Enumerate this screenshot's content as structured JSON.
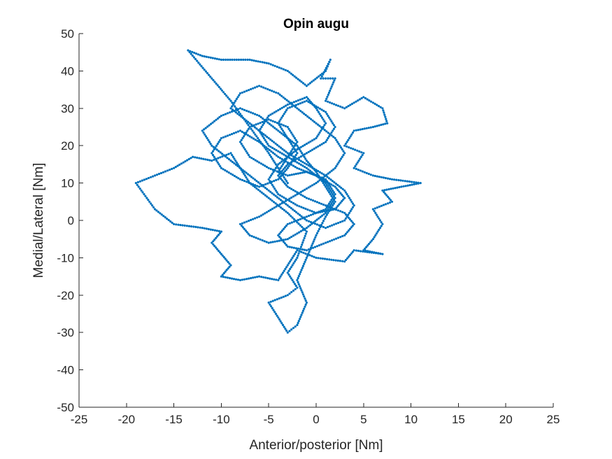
{
  "chart_data": {
    "type": "scatter",
    "title": "Opin augu",
    "xlabel": "Anterior/posterior [Nm]",
    "ylabel": "Medial/Lateral [Nm]",
    "xlim": [
      -25,
      25
    ],
    "ylim": [
      -50,
      50
    ],
    "xticks": [
      -25,
      -20,
      -15,
      -10,
      -5,
      0,
      5,
      10,
      15,
      20,
      25
    ],
    "yticks": [
      -50,
      -40,
      -30,
      -20,
      -10,
      0,
      10,
      20,
      30,
      40,
      50
    ],
    "xtick_labels": [
      "-25",
      "-20",
      "-15",
      "-10",
      "-5",
      "0",
      "5",
      "10",
      "15",
      "20",
      "25"
    ],
    "ytick_labels": [
      "-50",
      "-40",
      "-30",
      "-20",
      "-10",
      "0",
      "10",
      "20",
      "30",
      "40",
      "50"
    ],
    "grid": false,
    "marker_color": "#0072BD",
    "series": [
      {
        "path_points": [
          [
            -3,
            10
          ],
          [
            -5,
            18
          ],
          [
            -7,
            25
          ],
          [
            -9,
            32
          ],
          [
            -11,
            38
          ],
          [
            -13.5,
            45.5
          ],
          [
            -12,
            44
          ],
          [
            -10,
            43
          ],
          [
            -7,
            43
          ],
          [
            -5,
            42
          ],
          [
            -3,
            40
          ],
          [
            -1,
            36
          ],
          [
            1,
            40
          ],
          [
            1.5,
            43
          ],
          [
            0.5,
            38
          ],
          [
            2,
            38
          ],
          [
            1,
            32
          ],
          [
            3,
            30
          ],
          [
            5,
            33
          ],
          [
            7,
            30
          ],
          [
            7.5,
            26
          ],
          [
            6,
            25
          ],
          [
            4,
            24
          ],
          [
            3,
            20
          ],
          [
            5,
            18
          ],
          [
            4,
            14
          ],
          [
            6,
            12
          ],
          [
            8,
            11
          ],
          [
            11,
            10
          ],
          [
            9,
            9
          ],
          [
            7,
            8
          ],
          [
            8,
            5
          ],
          [
            6,
            3
          ],
          [
            7,
            -1
          ],
          [
            6,
            -5
          ],
          [
            5,
            -8
          ],
          [
            7,
            -9
          ],
          [
            4,
            -8
          ],
          [
            3,
            -11
          ],
          [
            0,
            -10
          ],
          [
            -2,
            -8
          ],
          [
            -3,
            -12
          ],
          [
            -4,
            -16
          ],
          [
            -6,
            -15
          ],
          [
            -8,
            -16
          ],
          [
            -10,
            -15
          ],
          [
            -9,
            -12
          ],
          [
            -10,
            -9
          ],
          [
            -11,
            -6
          ],
          [
            -10,
            -3
          ],
          [
            -12,
            -2
          ],
          [
            -15,
            -1
          ],
          [
            -17,
            3
          ],
          [
            -19,
            10
          ],
          [
            -17,
            12
          ],
          [
            -15,
            14
          ],
          [
            -13,
            17
          ],
          [
            -11,
            16
          ],
          [
            -9,
            18
          ],
          [
            -8,
            14
          ],
          [
            -7,
            10
          ],
          [
            -5,
            6
          ],
          [
            -3,
            2
          ],
          [
            -1,
            -3
          ],
          [
            -2,
            -10
          ],
          [
            -3,
            -14
          ],
          [
            -2,
            -18
          ],
          [
            -3,
            -20
          ],
          [
            -5,
            -22
          ],
          [
            -4,
            -26
          ],
          [
            -3,
            -30
          ],
          [
            -2,
            -28
          ],
          [
            -1,
            -22
          ],
          [
            -2,
            -16
          ],
          [
            -1,
            -10
          ],
          [
            0,
            -4
          ],
          [
            1,
            1
          ],
          [
            2,
            5
          ],
          [
            1,
            9
          ],
          [
            0,
            13
          ],
          [
            -1,
            16
          ],
          [
            -2,
            20
          ],
          [
            -4,
            24
          ],
          [
            -6,
            28
          ],
          [
            -8,
            30
          ],
          [
            -10,
            28
          ],
          [
            -12,
            24
          ],
          [
            -11,
            20
          ],
          [
            -9,
            16
          ],
          [
            -7,
            12
          ],
          [
            -5,
            8
          ],
          [
            -3,
            4
          ],
          [
            -1,
            0
          ],
          [
            1,
            -2
          ],
          [
            3,
            0
          ],
          [
            4,
            4
          ],
          [
            3,
            8
          ],
          [
            1,
            12
          ],
          [
            -1,
            15
          ],
          [
            -3,
            18
          ],
          [
            -5,
            22
          ],
          [
            -7,
            26
          ],
          [
            -9,
            30
          ],
          [
            -8,
            34
          ],
          [
            -6,
            36
          ],
          [
            -4,
            34
          ],
          [
            -2,
            30
          ],
          [
            0,
            26
          ],
          [
            2,
            22
          ],
          [
            3,
            18
          ],
          [
            2,
            14
          ],
          [
            0,
            10
          ],
          [
            -2,
            7
          ],
          [
            -4,
            4
          ],
          [
            -6,
            1
          ],
          [
            -8,
            -1
          ],
          [
            -7,
            -4
          ],
          [
            -5,
            -6
          ],
          [
            -3,
            -5
          ],
          [
            -1,
            -2
          ],
          [
            1,
            2
          ],
          [
            2,
            6
          ],
          [
            1,
            10
          ],
          [
            -1,
            14
          ],
          [
            -3,
            17
          ],
          [
            -5,
            20
          ],
          [
            -6,
            24
          ],
          [
            -5,
            28
          ],
          [
            -3,
            31
          ],
          [
            -1,
            33
          ],
          [
            0,
            30
          ],
          [
            1,
            26
          ],
          [
            0,
            22
          ],
          [
            -2,
            19
          ],
          [
            -4,
            15
          ],
          [
            -5,
            11
          ],
          [
            -4,
            7
          ],
          [
            -2,
            4
          ],
          [
            0,
            2
          ],
          [
            2,
            3
          ],
          [
            3,
            6
          ],
          [
            2,
            9
          ],
          [
            0,
            12
          ],
          [
            -2,
            14
          ],
          [
            -4,
            17
          ],
          [
            -6,
            21
          ],
          [
            -8,
            24
          ],
          [
            -10,
            22
          ],
          [
            -11,
            18
          ],
          [
            -10,
            14
          ],
          [
            -8,
            11
          ],
          [
            -6,
            9
          ],
          [
            -4,
            11
          ],
          [
            -3,
            14
          ],
          [
            -2,
            18
          ],
          [
            -3,
            22
          ],
          [
            -4,
            26
          ],
          [
            -3,
            30
          ],
          [
            -1,
            32
          ],
          [
            1,
            29
          ],
          [
            2,
            25
          ],
          [
            1,
            21
          ],
          [
            -1,
            18
          ],
          [
            -3,
            15
          ],
          [
            -4,
            12
          ],
          [
            -3,
            9
          ],
          [
            -1,
            6
          ],
          [
            1,
            4
          ],
          [
            3,
            2
          ],
          [
            4,
            -1
          ],
          [
            3,
            -4
          ],
          [
            1,
            -6
          ],
          [
            -1,
            -8
          ],
          [
            -3,
            -7
          ],
          [
            -4,
            -4
          ],
          [
            -3,
            -1
          ],
          [
            -1,
            1
          ],
          [
            1,
            3
          ],
          [
            2,
            7
          ],
          [
            1,
            11
          ],
          [
            -1,
            13
          ],
          [
            -3,
            12
          ],
          [
            -5,
            14
          ],
          [
            -7,
            17
          ],
          [
            -8,
            21
          ],
          [
            -7,
            25
          ],
          [
            -5,
            27
          ],
          [
            -3,
            25
          ],
          [
            -2,
            21
          ],
          [
            -3,
            17
          ],
          [
            -4,
            13
          ]
        ]
      }
    ]
  }
}
